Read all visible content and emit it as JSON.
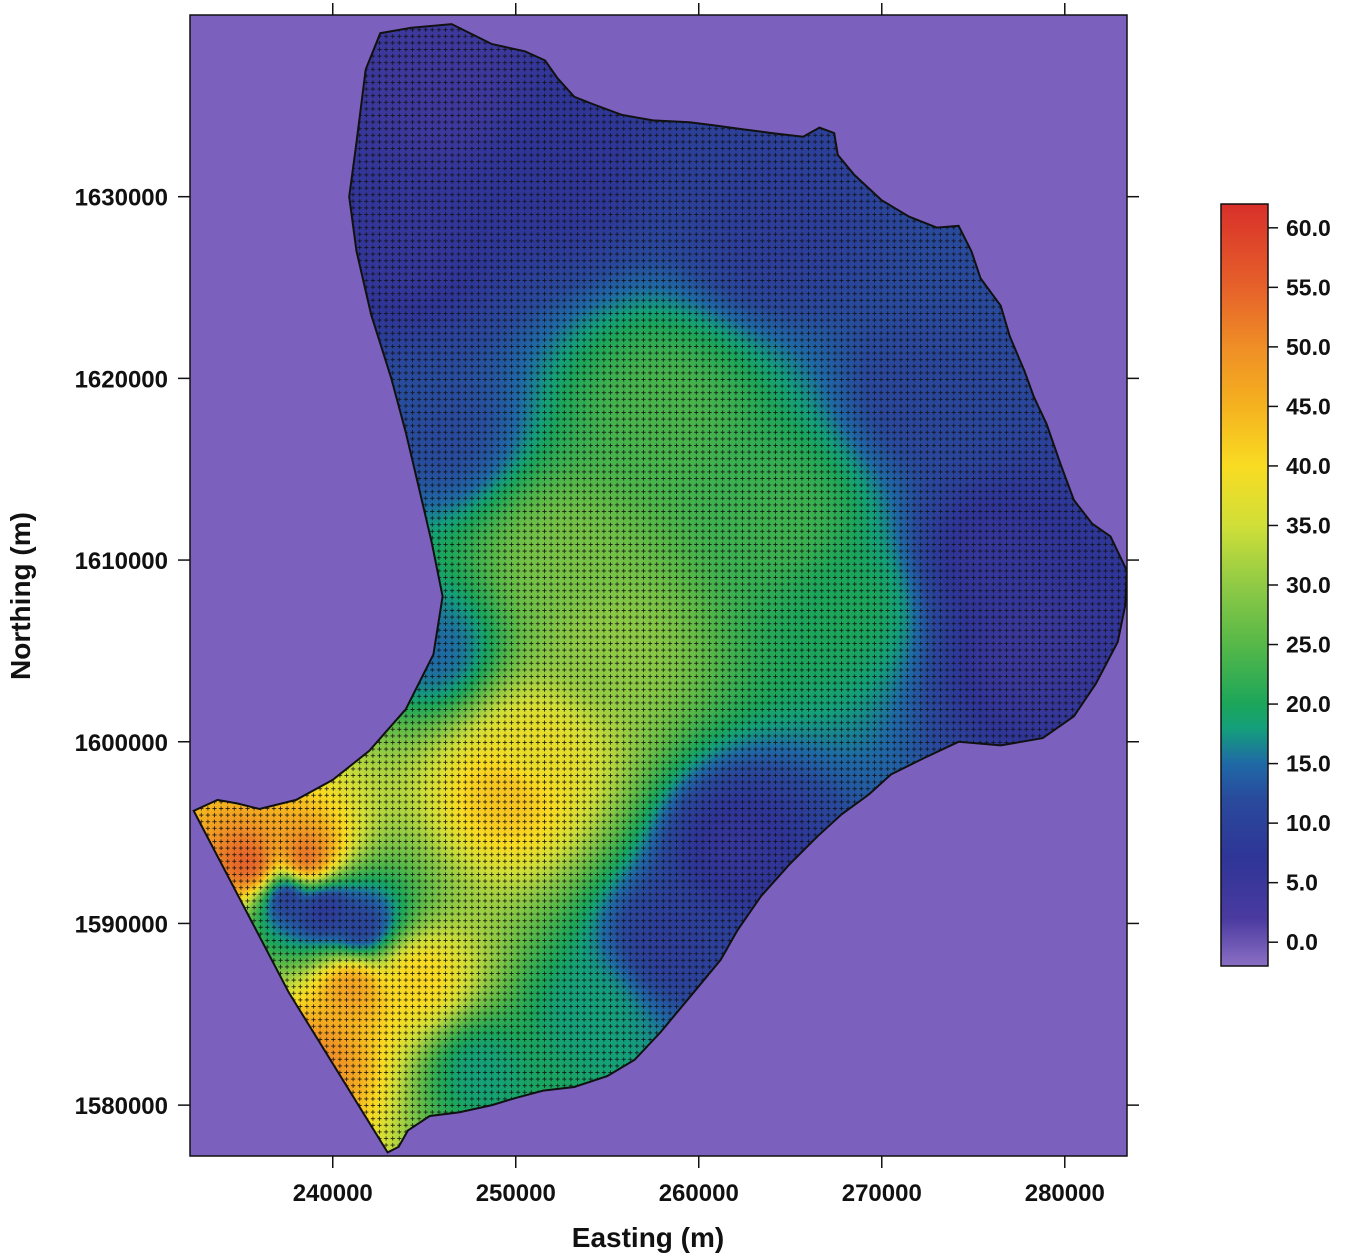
{
  "chart_data": {
    "type": "heatmap",
    "title": "",
    "xlabel": "Easting (m)",
    "ylabel": "Northing (m)",
    "xlim": [
      232200,
      283400
    ],
    "ylim": [
      1577200,
      1640000
    ],
    "x_ticks": [
      240000,
      250000,
      260000,
      270000,
      280000
    ],
    "y_ticks": [
      1580000,
      1590000,
      1600000,
      1610000,
      1620000,
      1630000
    ],
    "x_tick_labels": [
      "240000",
      "250000",
      "260000",
      "270000",
      "280000"
    ],
    "y_tick_labels": [
      "1580000",
      "1590000",
      "1600000",
      "1610000",
      "1620000",
      "1630000"
    ],
    "background_color": "#7b61bd",
    "grid_markers": "plus",
    "colorbar": {
      "range": [
        -2,
        62
      ],
      "ticks": [
        0.0,
        5.0,
        10.0,
        15.0,
        20.0,
        25.0,
        30.0,
        35.0,
        40.0,
        45.0,
        50.0,
        55.0,
        60.0
      ],
      "tick_labels": [
        "0.0",
        "5.0",
        "10.0",
        "15.0",
        "20.0",
        "25.0",
        "30.0",
        "35.0",
        "40.0",
        "45.0",
        "50.0",
        "55.0",
        "60.0"
      ],
      "stops": [
        [
          -2,
          "#8b6fc4"
        ],
        [
          2,
          "#4a3aa0"
        ],
        [
          7,
          "#2f3597"
        ],
        [
          12,
          "#294a9c"
        ],
        [
          15,
          "#1f69a6"
        ],
        [
          18,
          "#14a07a"
        ],
        [
          20,
          "#1ca65a"
        ],
        [
          25,
          "#56b848"
        ],
        [
          30,
          "#8fca45"
        ],
        [
          35,
          "#d0df38"
        ],
        [
          40,
          "#f9dc22"
        ],
        [
          45,
          "#f5b21f"
        ],
        [
          50,
          "#ef8e26"
        ],
        [
          55,
          "#e6612a"
        ],
        [
          62,
          "#d9302a"
        ]
      ]
    },
    "boundary": [
      [
        243000,
        1577400
      ],
      [
        237600,
        1586200
      ],
      [
        232400,
        1596200
      ],
      [
        233700,
        1596800
      ],
      [
        234800,
        1596600
      ],
      [
        236000,
        1596300
      ],
      [
        238000,
        1596800
      ],
      [
        240000,
        1597900
      ],
      [
        242000,
        1599500
      ],
      [
        244000,
        1601800
      ],
      [
        245500,
        1604800
      ],
      [
        246000,
        1608000
      ],
      [
        245400,
        1611000
      ],
      [
        244700,
        1614000
      ],
      [
        244000,
        1617000
      ],
      [
        243200,
        1620000
      ],
      [
        242100,
        1623500
      ],
      [
        241300,
        1627000
      ],
      [
        240900,
        1630000
      ],
      [
        241300,
        1633000
      ],
      [
        241800,
        1637000
      ],
      [
        242600,
        1639000
      ],
      [
        244300,
        1639300
      ],
      [
        246500,
        1639500
      ],
      [
        248700,
        1638400
      ],
      [
        250500,
        1638000
      ],
      [
        251600,
        1637500
      ],
      [
        252300,
        1636500
      ],
      [
        253200,
        1635500
      ],
      [
        254200,
        1635100
      ],
      [
        255800,
        1634500
      ],
      [
        257500,
        1634200
      ],
      [
        259500,
        1634100
      ],
      [
        261000,
        1633900
      ],
      [
        262500,
        1633700
      ],
      [
        264000,
        1633500
      ],
      [
        265700,
        1633300
      ],
      [
        266600,
        1633800
      ],
      [
        267400,
        1633500
      ],
      [
        267600,
        1632300
      ],
      [
        268500,
        1631200
      ],
      [
        270000,
        1629800
      ],
      [
        271500,
        1628900
      ],
      [
        273000,
        1628300
      ],
      [
        274200,
        1628400
      ],
      [
        274900,
        1627000
      ],
      [
        275400,
        1625500
      ],
      [
        276500,
        1624000
      ],
      [
        277000,
        1622300
      ],
      [
        277800,
        1620400
      ],
      [
        278300,
        1619000
      ],
      [
        279000,
        1617500
      ],
      [
        279800,
        1615200
      ],
      [
        280500,
        1613300
      ],
      [
        281500,
        1612000
      ],
      [
        282500,
        1611300
      ],
      [
        283400,
        1609400
      ],
      [
        283300,
        1607500
      ],
      [
        282900,
        1605500
      ],
      [
        281700,
        1603200
      ],
      [
        280500,
        1601400
      ],
      [
        278800,
        1600200
      ],
      [
        276500,
        1599800
      ],
      [
        274200,
        1600000
      ],
      [
        272300,
        1599100
      ],
      [
        270500,
        1598200
      ],
      [
        269300,
        1597100
      ],
      [
        267800,
        1596000
      ],
      [
        266500,
        1594800
      ],
      [
        265000,
        1593300
      ],
      [
        263400,
        1591500
      ],
      [
        262100,
        1589600
      ],
      [
        261200,
        1588000
      ],
      [
        259800,
        1586300
      ],
      [
        257900,
        1584000
      ],
      [
        256500,
        1582500
      ],
      [
        255000,
        1581600
      ],
      [
        253200,
        1581000
      ],
      [
        251500,
        1580800
      ],
      [
        250000,
        1580400
      ],
      [
        248700,
        1580000
      ],
      [
        246900,
        1579600
      ],
      [
        245300,
        1579400
      ],
      [
        244100,
        1578600
      ],
      [
        243600,
        1577700
      ]
    ],
    "value_field_anchors": [
      {
        "easting": 249500,
        "northing": 1597000,
        "value": 43
      },
      {
        "easting": 251000,
        "northing": 1599500,
        "value": 38
      },
      {
        "easting": 241000,
        "northing": 1586500,
        "value": 48
      },
      {
        "easting": 238500,
        "northing": 1593500,
        "value": 55
      },
      {
        "easting": 235500,
        "northing": 1593200,
        "value": 56
      },
      {
        "easting": 239000,
        "northing": 1582500,
        "value": 50
      },
      {
        "easting": 244500,
        "northing": 1587000,
        "value": 41
      },
      {
        "easting": 252500,
        "northing": 1610000,
        "value": 28
      },
      {
        "easting": 255000,
        "northing": 1605000,
        "value": 30
      },
      {
        "easting": 258000,
        "northing": 1618000,
        "value": 24
      },
      {
        "easting": 264500,
        "northing": 1612000,
        "value": 23
      },
      {
        "easting": 268000,
        "northing": 1607500,
        "value": 20
      },
      {
        "easting": 262000,
        "northing": 1594000,
        "value": 6
      },
      {
        "easting": 258500,
        "northing": 1589000,
        "value": 9
      },
      {
        "easting": 276000,
        "northing": 1610000,
        "value": 6
      },
      {
        "easting": 278000,
        "northing": 1605000,
        "value": 5
      },
      {
        "easting": 252000,
        "northing": 1631500,
        "value": 7
      },
      {
        "easting": 246000,
        "northing": 1636000,
        "value": 4
      },
      {
        "easting": 264000,
        "northing": 1628500,
        "value": 9
      },
      {
        "easting": 272500,
        "northing": 1619000,
        "value": 11
      },
      {
        "easting": 244000,
        "northing": 1627000,
        "value": 6
      },
      {
        "easting": 246000,
        "northing": 1617000,
        "value": 12
      },
      {
        "easting": 245500,
        "northing": 1605000,
        "value": 15
      },
      {
        "easting": 239500,
        "northing": 1590800,
        "value": 7
      },
      {
        "easting": 237500,
        "northing": 1591500,
        "value": 8
      },
      {
        "easting": 241500,
        "northing": 1589800,
        "value": 10
      },
      {
        "easting": 248000,
        "northing": 1582000,
        "value": 18
      },
      {
        "easting": 254000,
        "northing": 1585000,
        "value": 18
      }
    ]
  }
}
